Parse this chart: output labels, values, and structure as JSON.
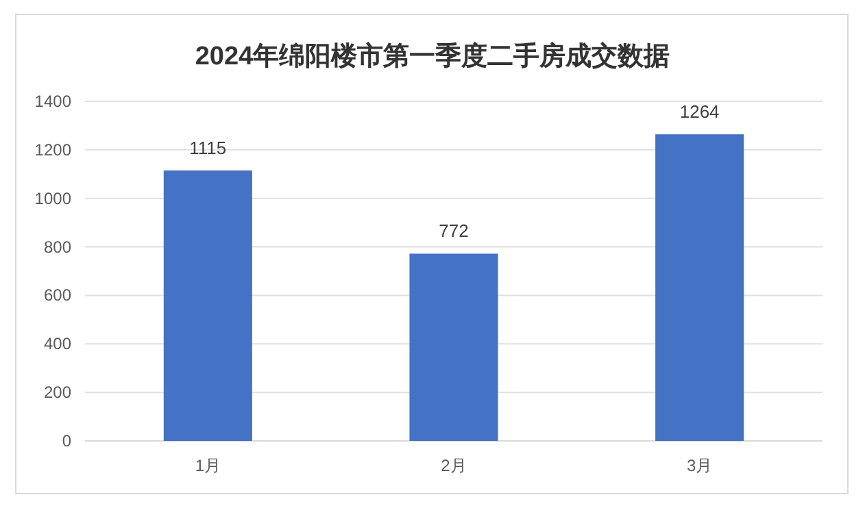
{
  "chart_data": {
    "type": "bar",
    "title": "2024年绵阳楼市第一季度二手房成交数据",
    "categories": [
      "1月",
      "2月",
      "3月"
    ],
    "values": [
      1115,
      772,
      1264
    ],
    "color": "#4472c4",
    "ylim": [
      0,
      1400
    ],
    "yticks": [
      0,
      200,
      400,
      600,
      800,
      1000,
      1200,
      1400
    ],
    "grid": "y",
    "data_labels": true
  }
}
